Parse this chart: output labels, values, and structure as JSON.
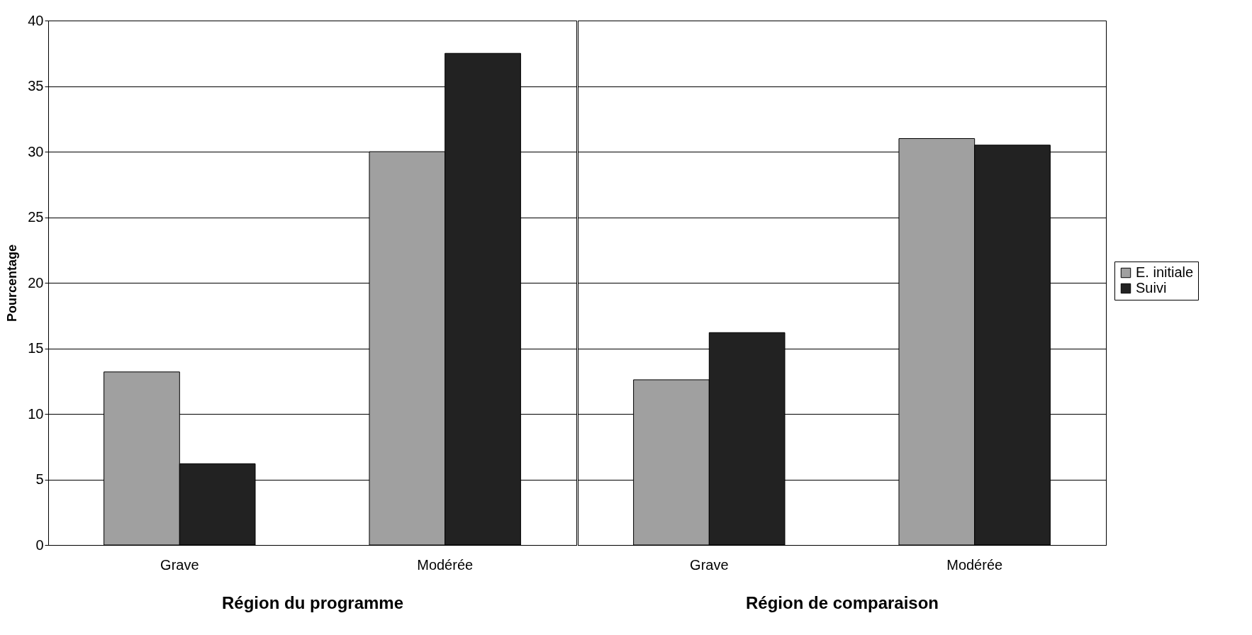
{
  "chart_data": [
    {
      "type": "bar",
      "xlabel": "Région du programme",
      "ylabel": "Pourcentage",
      "categories": [
        "Grave",
        "Modérée"
      ],
      "series": [
        {
          "color": "#a0a0a0",
          "values": [
            13.2,
            30
          ]
        },
        {
          "color": "#222222",
          "values": [
            6.2,
            37.5
          ]
        }
      ],
      "ylim": [
        0,
        40
      ],
      "yticks": [
        0,
        5,
        10,
        15,
        20,
        25,
        30,
        35,
        40
      ],
      "grid": "y",
      "legend": false
    },
    {
      "type": "bar",
      "xlabel": "Région de comparaison",
      "categories": [
        "Grave",
        "Modérée"
      ],
      "series": [
        {
          "name": "E. initiale",
          "color": "#a0a0a0",
          "values": [
            12.6,
            31
          ]
        },
        {
          "name": "Suivi",
          "color": "#222222",
          "values": [
            16.2,
            30.5
          ]
        }
      ],
      "ylim": [
        0,
        40
      ],
      "yticks": [
        0,
        5,
        10,
        15,
        20,
        25,
        30,
        35,
        40
      ],
      "grid": "y",
      "legend": "right",
      "tick_labels": "x"
    }
  ]
}
